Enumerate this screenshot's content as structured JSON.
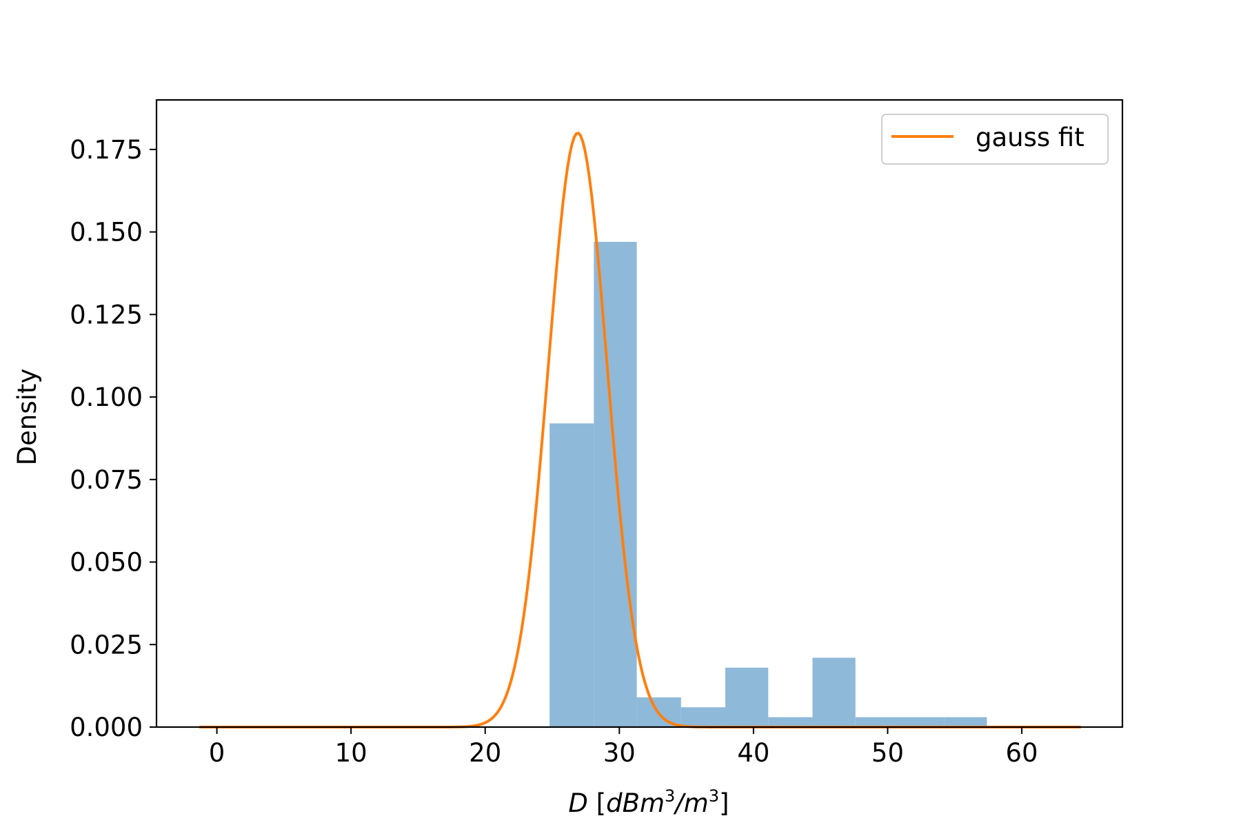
{
  "chart_data": {
    "type": "bar",
    "xlabel": {
      "italic_var": "D",
      "unit_open": " [",
      "unit_base": "dBm",
      "unit_exp1": "3",
      "unit_sep": "/m",
      "unit_exp2": "3",
      "unit_close": "]"
    },
    "ylabel": "Density",
    "xlim": [
      -4.5,
      67.5
    ],
    "ylim": [
      0,
      0.19
    ],
    "xticks": [
      0,
      10,
      20,
      30,
      40,
      50,
      60
    ],
    "xtick_labels": [
      "0",
      "10",
      "20",
      "30",
      "40",
      "50",
      "60"
    ],
    "yticks": [
      0,
      0.025,
      0.05,
      0.075,
      0.1,
      0.125,
      0.15,
      0.175
    ],
    "ytick_labels": [
      "0.000",
      "0.025",
      "0.050",
      "0.075",
      "0.100",
      "0.125",
      "0.150",
      "0.175"
    ],
    "grid": false,
    "histogram": {
      "color": "#8fb9d9",
      "bins": [
        {
          "x0": 24.8,
          "x1": 28.1,
          "density": 0.092
        },
        {
          "x0": 28.1,
          "x1": 31.3,
          "density": 0.147
        },
        {
          "x0": 31.3,
          "x1": 34.6,
          "density": 0.009
        },
        {
          "x0": 34.6,
          "x1": 37.9,
          "density": 0.006
        },
        {
          "x0": 37.9,
          "x1": 41.1,
          "density": 0.018
        },
        {
          "x0": 41.1,
          "x1": 44.4,
          "density": 0.003
        },
        {
          "x0": 44.4,
          "x1": 47.6,
          "density": 0.021
        },
        {
          "x0": 47.6,
          "x1": 50.9,
          "density": 0.003
        },
        {
          "x0": 50.9,
          "x1": 54.2,
          "density": 0.003
        },
        {
          "x0": 54.2,
          "x1": 57.4,
          "density": 0.003
        }
      ]
    },
    "series": [
      {
        "name": "gauss fit",
        "type": "line",
        "color": "#ff7f0e",
        "gaussian": {
          "mu": 26.9,
          "sigma": 2.2,
          "peak": 0.18
        },
        "x_range": [
          -1.3,
          64.4
        ]
      }
    ],
    "legend": {
      "position": "top-right",
      "entries": [
        "gauss fit"
      ]
    }
  }
}
